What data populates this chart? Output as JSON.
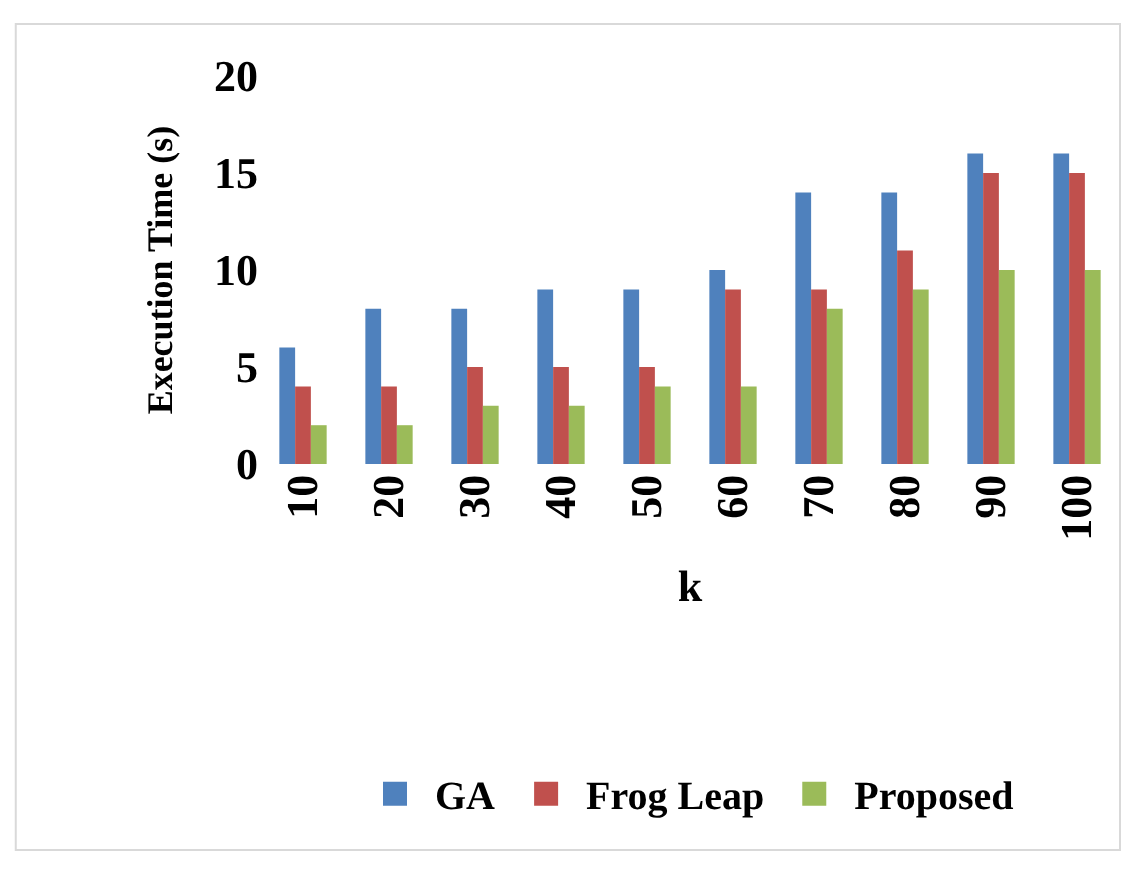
{
  "chart_data": {
    "type": "bar",
    "xlabel": "k",
    "ylabel": "Execution Time (s)",
    "categories": [
      "10",
      "20",
      "30",
      "40",
      "50",
      "60",
      "70",
      "80",
      "90",
      "100"
    ],
    "series": [
      {
        "name": "GA",
        "color": "#4f81bd",
        "values": [
          6,
          8,
          8,
          9,
          9,
          10,
          14,
          14,
          16,
          16
        ]
      },
      {
        "name": "Frog Leap",
        "color": "#c0504d",
        "values": [
          4,
          4,
          5,
          5,
          5,
          9,
          9,
          11,
          15,
          15
        ]
      },
      {
        "name": "Proposed",
        "color": "#9bbb59",
        "values": [
          2,
          2,
          3,
          3,
          4,
          4,
          8,
          9,
          10,
          10
        ]
      }
    ],
    "ylim": [
      0,
      20
    ],
    "yticks": [
      0,
      5,
      10,
      15,
      20
    ],
    "legend": "bottom"
  }
}
